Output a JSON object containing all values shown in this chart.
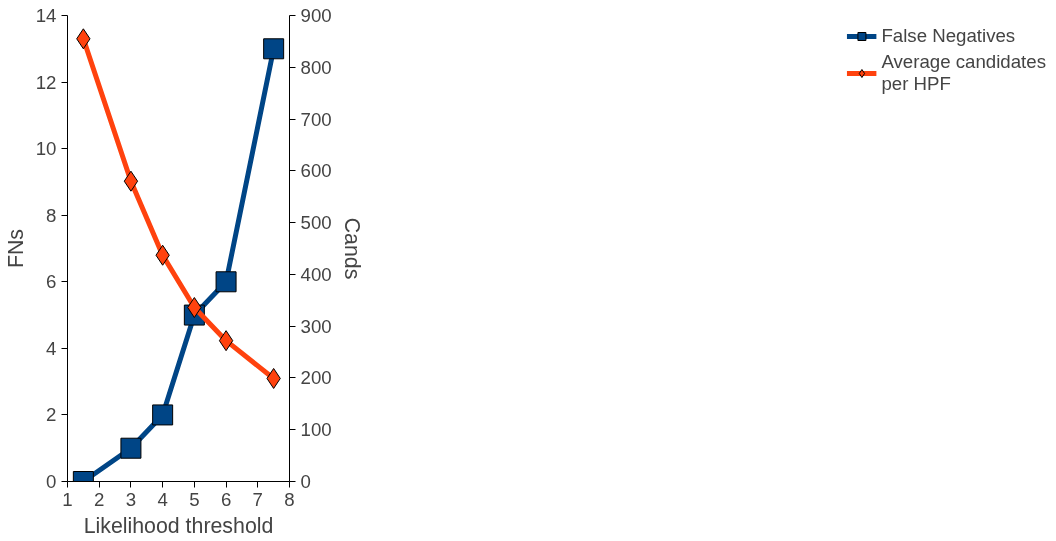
{
  "chart_data": {
    "type": "line",
    "xlabel": "Likelihood threshold",
    "ylabel": "FNs",
    "y2label": "Cands",
    "x": [
      1.5,
      3,
      4,
      5,
      6,
      7.5
    ],
    "series": [
      {
        "name": "False Negatives",
        "color": "#004586",
        "values": [
          0,
          1,
          2,
          5,
          6,
          13
        ],
        "marker": "square"
      },
      {
        "name": "Average candidates per HPF",
        "color": "#ff420e",
        "values": [
          855,
          580,
          437,
          336,
          272,
          199
        ],
        "marker": "diamond",
        "axis": "y2"
      }
    ],
    "xlim": [
      1,
      8
    ],
    "xticks": [
      1,
      2,
      3,
      4,
      5,
      6,
      7,
      8
    ],
    "ylim": [
      0,
      14
    ],
    "yticks": [
      0,
      2,
      4,
      6,
      8,
      10,
      12,
      14
    ],
    "y2lim": [
      0,
      900
    ],
    "y2ticks": [
      0,
      100,
      200,
      300,
      400,
      500,
      600,
      700,
      800,
      900
    ],
    "grid": false,
    "legend": "right",
    "line_style": "solid"
  }
}
